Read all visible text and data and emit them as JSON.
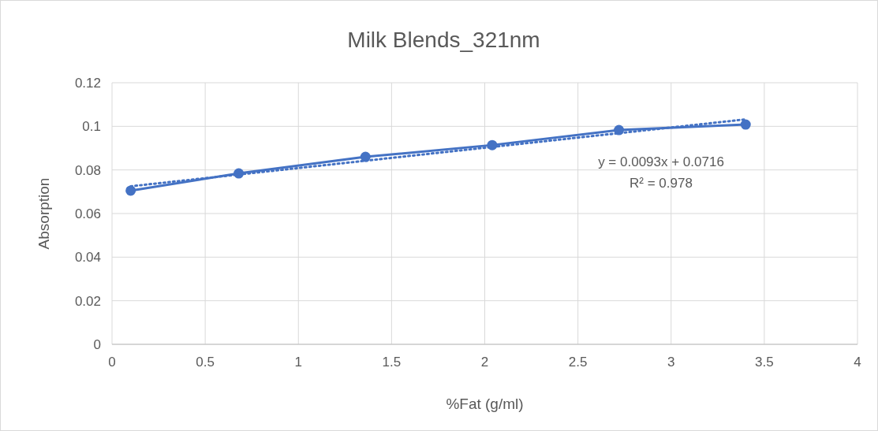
{
  "chart_data": {
    "type": "line",
    "title": "Milk Blends_321nm",
    "xlabel": "%Fat (g/ml)",
    "ylabel": "Absorption",
    "xlim": [
      0,
      4
    ],
    "xticks": [
      0,
      0.5,
      1,
      1.5,
      2,
      2.5,
      3,
      3.5,
      4
    ],
    "ylim": [
      0,
      0.12
    ],
    "yticks": [
      0,
      0.02,
      0.04,
      0.06,
      0.08,
      0.1,
      0.12
    ],
    "grid": true,
    "series": [
      {
        "color": "#4472c4",
        "marker": "circle",
        "line_style": "solid",
        "x": [
          0.1,
          0.68,
          1.36,
          2.04,
          2.72,
          3.4
        ],
        "values": [
          0.0705,
          0.0784,
          0.086,
          0.0914,
          0.0983,
          0.1008
        ]
      },
      {
        "color": "#4472c4",
        "marker": "none",
        "line_style": "dotted",
        "x": [
          0.1,
          3.4
        ],
        "values": [
          0.0725,
          0.1032
        ]
      }
    ],
    "annotations": [
      "y = 0.0093x + 0.0716",
      "R² = 0.978"
    ]
  }
}
